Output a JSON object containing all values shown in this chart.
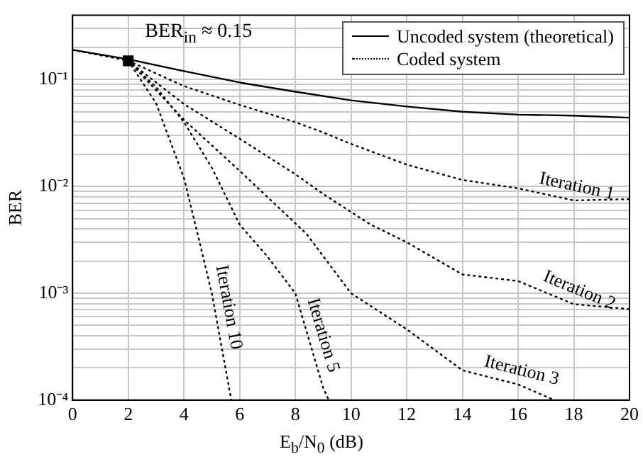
{
  "chart_data": {
    "type": "line",
    "xlabel": "E$_{b}$/N$_{0}$ (dB)",
    "ylabel": "BER",
    "annotations": [
      "BER$_{in}$ ≈ 0.15",
      {
        "text": "Iteration 1",
        "x": 18,
        "y": 0.0074
      },
      {
        "text": "Iteration 2",
        "x": 18,
        "y": 0.0008
      },
      {
        "text": "Iteration 3",
        "x": 16,
        "y": 0.00014
      },
      {
        "text": "Iteration 5",
        "x": 8.5,
        "y": 0.00037
      },
      {
        "text": "Iteration 10",
        "x": 5.1,
        "y": 0.0007
      }
    ],
    "xlim": [
      0,
      20
    ],
    "xticks": [
      0,
      2,
      4,
      6,
      8,
      10,
      12,
      14,
      16,
      18,
      20
    ],
    "ylim": [
      0.0001,
      0.4
    ],
    "yticks": [
      {
        "value": 0.0001,
        "label": "10⁻⁴"
      },
      {
        "value": 0.0002,
        "label": null
      },
      {
        "value": 0.0003,
        "label": null
      },
      {
        "value": 0.0004,
        "label": null
      },
      {
        "value": 0.0005,
        "label": null
      },
      {
        "value": 0.0006,
        "label": null
      },
      {
        "value": 0.0007,
        "label": null
      },
      {
        "value": 0.0008,
        "label": null
      },
      {
        "value": 0.0009,
        "label": null
      },
      {
        "value": 0.001,
        "label": "10⁻³"
      },
      {
        "value": 0.002,
        "label": null
      },
      {
        "value": 0.003,
        "label": null
      },
      {
        "value": 0.004,
        "label": null
      },
      {
        "value": 0.005,
        "label": null
      },
      {
        "value": 0.006,
        "label": null
      },
      {
        "value": 0.007,
        "label": null
      },
      {
        "value": 0.008,
        "label": null
      },
      {
        "value": 0.009,
        "label": null
      },
      {
        "value": 0.01,
        "label": "10⁻²"
      },
      {
        "value": 0.02,
        "label": null
      },
      {
        "value": 0.03,
        "label": null
      },
      {
        "value": 0.04,
        "label": null
      },
      {
        "value": 0.05,
        "label": null
      },
      {
        "value": 0.06,
        "label": null
      },
      {
        "value": 0.07,
        "label": null
      },
      {
        "value": 0.08,
        "label": null
      },
      {
        "value": 0.09,
        "label": null
      },
      {
        "value": 0.1,
        "label": "10⁻¹"
      },
      {
        "value": 0.2,
        "label": null
      },
      {
        "value": 0.3,
        "label": null
      }
    ],
    "log": "y",
    "grid": true,
    "legend": "top right",
    "series": [
      {
        "name": "Uncoded system (theoretical)",
        "color": "#000000",
        "line_style": "solid",
        "marker": "none",
        "x": [
          0,
          2,
          4,
          6,
          8,
          10,
          12,
          14,
          16,
          18,
          20
        ],
        "values": [
          0.19,
          0.155,
          0.12,
          0.094,
          0.077,
          0.064,
          0.056,
          0.05,
          0.047,
          0.046,
          0.044
        ]
      },
      {
        "name": "Coded system",
        "color": "#000000",
        "line_style": "dotted",
        "marker": "none",
        "x": [
          0,
          2
        ],
        "values": [
          0.19,
          0.15
        ]
      },
      {
        "color": "#000000",
        "line_style": "dotted",
        "marker": "none",
        "x": [
          2,
          4,
          6,
          8,
          9,
          10,
          12,
          14,
          16,
          18,
          20
        ],
        "values": [
          0.15,
          0.087,
          0.058,
          0.04,
          0.032,
          0.025,
          0.016,
          0.0115,
          0.0096,
          0.0074,
          0.0076
        ]
      },
      {
        "color": "#000000",
        "line_style": "dotted",
        "marker": "none",
        "x": [
          2,
          4,
          6,
          8,
          9,
          10.7,
          12,
          14,
          16,
          18,
          20
        ],
        "values": [
          0.15,
          0.059,
          0.028,
          0.013,
          0.0085,
          0.0044,
          0.003,
          0.0015,
          0.0013,
          0.00079,
          0.00071
        ]
      },
      {
        "color": "#000000",
        "line_style": "dotted",
        "marker": "none",
        "x": [
          2,
          4,
          6,
          8.4,
          10,
          12,
          14,
          16,
          17.3
        ],
        "values": [
          0.15,
          0.042,
          0.014,
          0.0036,
          0.001,
          0.00046,
          0.00019,
          0.00014,
          0.0001
        ]
      },
      {
        "color": "#000000",
        "line_style": "dotted",
        "marker": "none",
        "x": [
          2,
          3,
          4,
          5,
          6,
          7,
          8,
          9,
          9.2
        ],
        "values": [
          0.15,
          0.085,
          0.04,
          0.015,
          0.0044,
          0.0022,
          0.001,
          0.00013,
          0.0001
        ]
      },
      {
        "color": "#000000",
        "line_style": "dotted",
        "marker": "none",
        "x": [
          2,
          3,
          4,
          4.5,
          5,
          5.7
        ],
        "values": [
          0.15,
          0.06,
          0.012,
          0.0035,
          0.001,
          0.0001
        ]
      },
      {
        "color": "#000000",
        "marker": "square",
        "x": [
          2
        ],
        "values": [
          0.15
        ]
      }
    ]
  }
}
